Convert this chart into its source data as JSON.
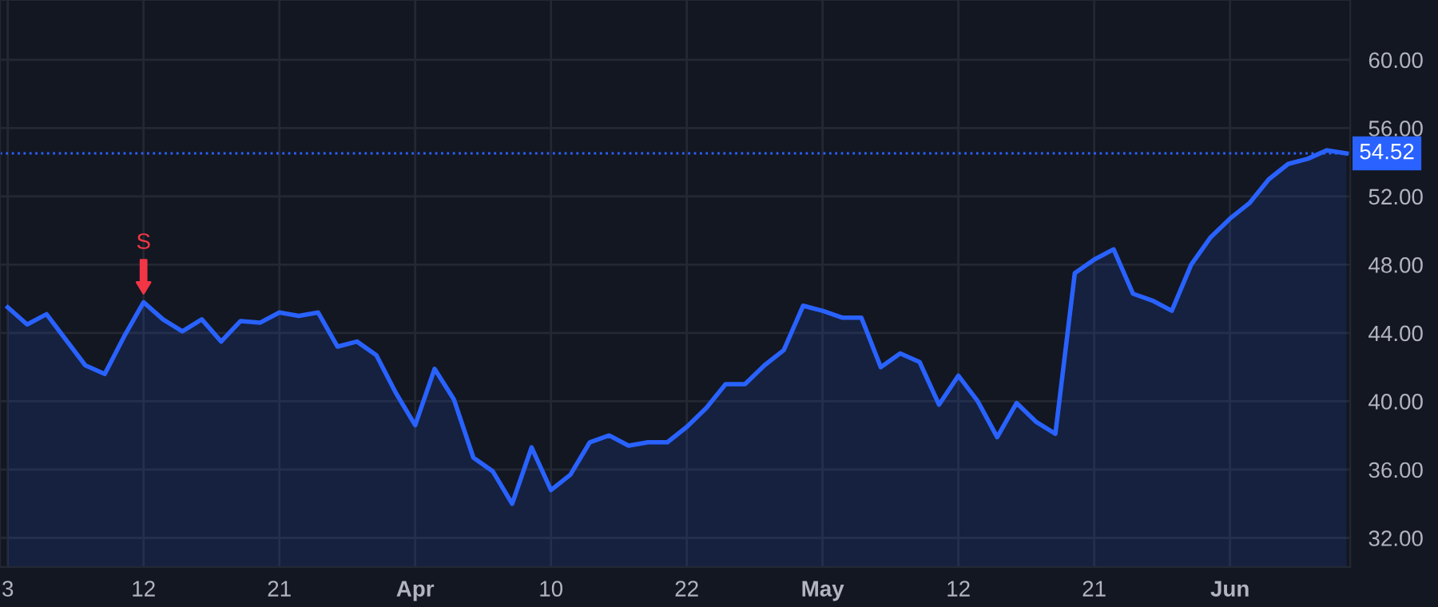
{
  "chart_data": {
    "type": "area",
    "categories": [
      "3",
      null,
      null,
      null,
      null,
      null,
      null,
      "12",
      null,
      null,
      null,
      null,
      null,
      null,
      "21",
      null,
      null,
      null,
      null,
      null,
      null,
      "Apr",
      null,
      null,
      null,
      null,
      null,
      null,
      "10",
      null,
      null,
      null,
      null,
      null,
      null,
      "22",
      null,
      null,
      null,
      null,
      null,
      null,
      "May",
      null,
      null,
      null,
      null,
      null,
      null,
      "12",
      null,
      null,
      null,
      null,
      null,
      null,
      "21",
      null,
      null,
      null,
      null,
      null,
      null,
      "Jun",
      null,
      null,
      null,
      null,
      null,
      null
    ],
    "series": [
      {
        "color": "#2962ff",
        "values": [
          45.5,
          44.5,
          45.1,
          43.6,
          42.1,
          41.6,
          43.8,
          45.8,
          44.8,
          44.1,
          44.8,
          43.5,
          44.7,
          44.6,
          45.2,
          45.0,
          45.2,
          43.2,
          43.5,
          42.7,
          40.5,
          38.6,
          41.9,
          40.1,
          36.7,
          35.9,
          34.0,
          37.3,
          34.8,
          35.7,
          37.6,
          38.0,
          37.4,
          37.6,
          37.6,
          38.5,
          39.6,
          41.0,
          41.0,
          42.1,
          43.0,
          45.6,
          45.3,
          44.9,
          44.9,
          42.0,
          42.8,
          42.3,
          39.8,
          41.5,
          40.0,
          37.9,
          39.9,
          38.8,
          38.1,
          47.5,
          48.3,
          48.9,
          46.3,
          45.9,
          45.3,
          48.0,
          49.6,
          50.7,
          51.6,
          53.0,
          53.9,
          54.2,
          54.7,
          54.52
        ]
      }
    ],
    "ylim": [
      30.3,
      63.5
    ],
    "yticks": [
      {
        "value": 32,
        "label": "32.00"
      },
      {
        "value": 36,
        "label": "36.00"
      },
      {
        "value": 40,
        "label": "40.00"
      },
      {
        "value": 44,
        "label": "44.00"
      },
      {
        "value": 48,
        "label": "48.00"
      },
      {
        "value": 52,
        "label": "52.00"
      },
      {
        "value": 56,
        "label": "56.00"
      },
      {
        "value": 60,
        "label": "60.00"
      }
    ],
    "ref_lines": [
      {
        "axis": "y",
        "value": 54.52,
        "label": "54.52",
        "color": "#2962ff",
        "line_style": "dotted"
      }
    ],
    "annotations": [
      {
        "text": "S",
        "x": "12",
        "y": 45.8
      }
    ],
    "grid": true
  }
}
